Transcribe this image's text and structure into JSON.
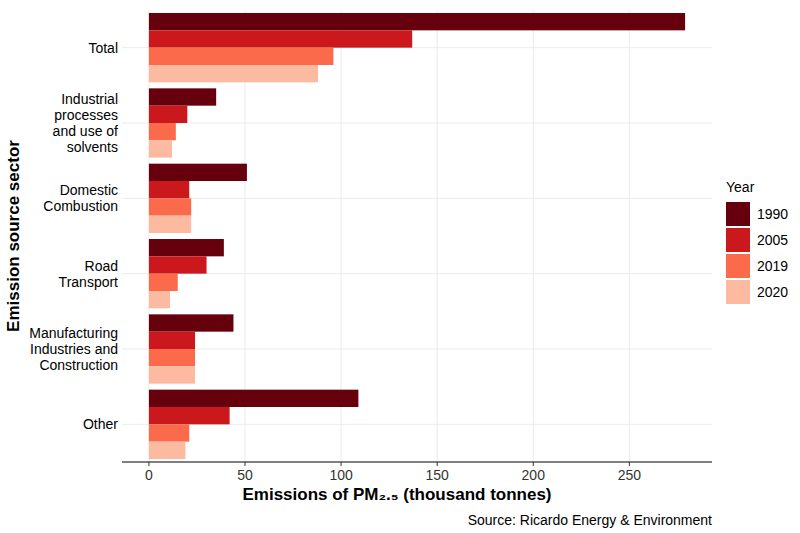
{
  "chart_data": {
    "type": "bar",
    "orientation": "horizontal",
    "x_label": "Emissions of PM₂.₅ (thousand tonnes)",
    "y_label": "Emission source sector",
    "legend_title": "Year",
    "annotation": "Source: Ricardo Energy & Environment",
    "categories": [
      "Total",
      "Industrial\nprocesses\nand use of\nsolvents",
      "Domestic\nCombustion",
      "Road\nTransport",
      "Manufacturing\nIndustries and\nConstruction",
      "Other"
    ],
    "series": [
      {
        "name": "1990",
        "color": "#67000d",
        "values": [
          279,
          35,
          51,
          39,
          44,
          109
        ]
      },
      {
        "name": "2005",
        "color": "#cb181d",
        "values": [
          137,
          20,
          21,
          30,
          24,
          42
        ]
      },
      {
        "name": "2019",
        "color": "#fb6a4a",
        "values": [
          96,
          14,
          22,
          15,
          24,
          21
        ]
      },
      {
        "name": "2020",
        "color": "#fcbba1",
        "values": [
          88,
          12,
          22,
          11,
          24,
          19
        ]
      }
    ],
    "xlim": [
      -14,
      293
    ],
    "xticks": [
      0,
      50,
      100,
      150,
      200,
      250
    ],
    "grid": true,
    "legend": "right"
  }
}
